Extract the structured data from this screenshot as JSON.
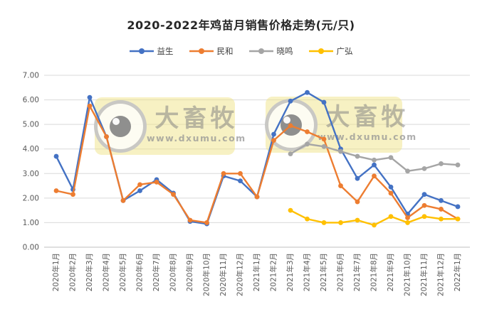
{
  "watermark": {
    "brand": "大畜牧",
    "url": "www.dxumu.com"
  },
  "chart_data": {
    "type": "line",
    "title": "2020-2022年鸡苗月销售价格走势(元/只)",
    "categories": [
      "2020年1月",
      "2020年2月",
      "2020年3月",
      "2020年4月",
      "2020年5月",
      "2020年6月",
      "2020年7月",
      "2020年8月",
      "2020年9月",
      "2020年10月",
      "2020年11月",
      "2020年12月",
      "2021年1月",
      "2021年2月",
      "2021年3月",
      "2021年4月",
      "2021年5月",
      "2021年6月",
      "2021年7月",
      "2021年8月",
      "2021年9月",
      "2021年10月",
      "2021年11月",
      "2021年12月",
      "2022年1月"
    ],
    "series": [
      {
        "name": "益生",
        "color": "#4472C4",
        "values": [
          3.7,
          2.35,
          6.1,
          4.5,
          1.9,
          2.3,
          2.75,
          2.2,
          1.05,
          0.95,
          2.9,
          2.7,
          2.05,
          4.6,
          5.95,
          6.3,
          5.9,
          4.0,
          2.8,
          3.35,
          2.45,
          1.35,
          2.15,
          1.9,
          1.65
        ]
      },
      {
        "name": "民和",
        "color": "#ED7D31",
        "values": [
          2.3,
          2.15,
          5.75,
          4.5,
          1.9,
          2.55,
          2.65,
          2.15,
          1.1,
          1.0,
          3.0,
          3.0,
          2.05,
          4.35,
          4.95,
          4.7,
          4.4,
          2.5,
          1.85,
          2.9,
          2.2,
          1.2,
          1.7,
          1.55,
          1.15
        ]
      },
      {
        "name": "晓鸣",
        "color": "#A5A5A5",
        "values": [
          null,
          null,
          null,
          null,
          null,
          null,
          null,
          null,
          null,
          null,
          null,
          null,
          null,
          null,
          3.8,
          4.2,
          4.1,
          3.9,
          3.7,
          3.55,
          3.65,
          3.1,
          3.2,
          3.4,
          3.35
        ]
      },
      {
        "name": "广弘",
        "color": "#FFC000",
        "values": [
          null,
          null,
          null,
          null,
          null,
          null,
          null,
          null,
          null,
          null,
          null,
          null,
          null,
          null,
          1.5,
          1.15,
          1.0,
          1.0,
          1.1,
          0.9,
          1.25,
          1.0,
          1.25,
          1.15,
          1.15
        ]
      }
    ],
    "ylim": [
      0,
      7
    ],
    "ytick_step": 1,
    "grid": true,
    "legend_position": "top",
    "x_label_rotation": -90,
    "axis_label_color": "#595959",
    "gridline_color": "#D9D9D9"
  }
}
